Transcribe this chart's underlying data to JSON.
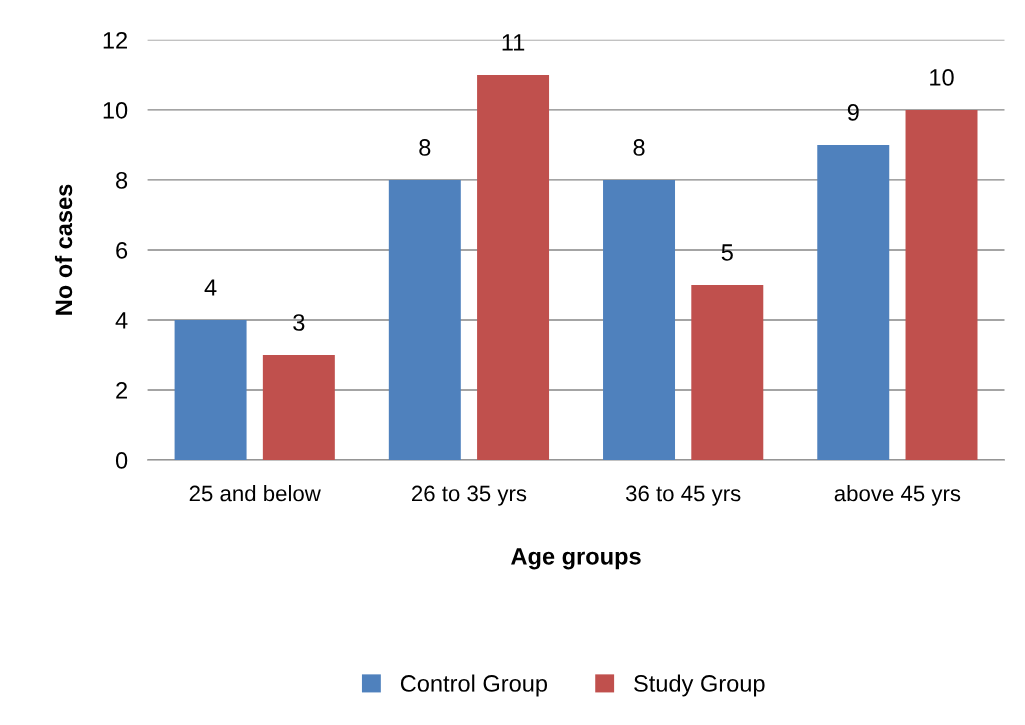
{
  "chart_data": {
    "type": "bar",
    "xlabel": "Age groups",
    "ylabel": "No of cases",
    "categories": [
      "25 and below",
      "26 to 35 yrs",
      "36 to 45 yrs",
      "above 45 yrs"
    ],
    "series": [
      {
        "name": "Control Group",
        "color": "#4f81bd",
        "values": [
          4,
          8,
          8,
          9
        ]
      },
      {
        "name": "Study Group",
        "color": "#c0504d",
        "values": [
          3,
          11,
          5,
          10
        ]
      }
    ],
    "ylim": [
      0,
      12
    ],
    "yticks": [
      0,
      2,
      4,
      6,
      8,
      10,
      12
    ],
    "grid": "y",
    "legend": "bottom",
    "data_labels": true
  }
}
